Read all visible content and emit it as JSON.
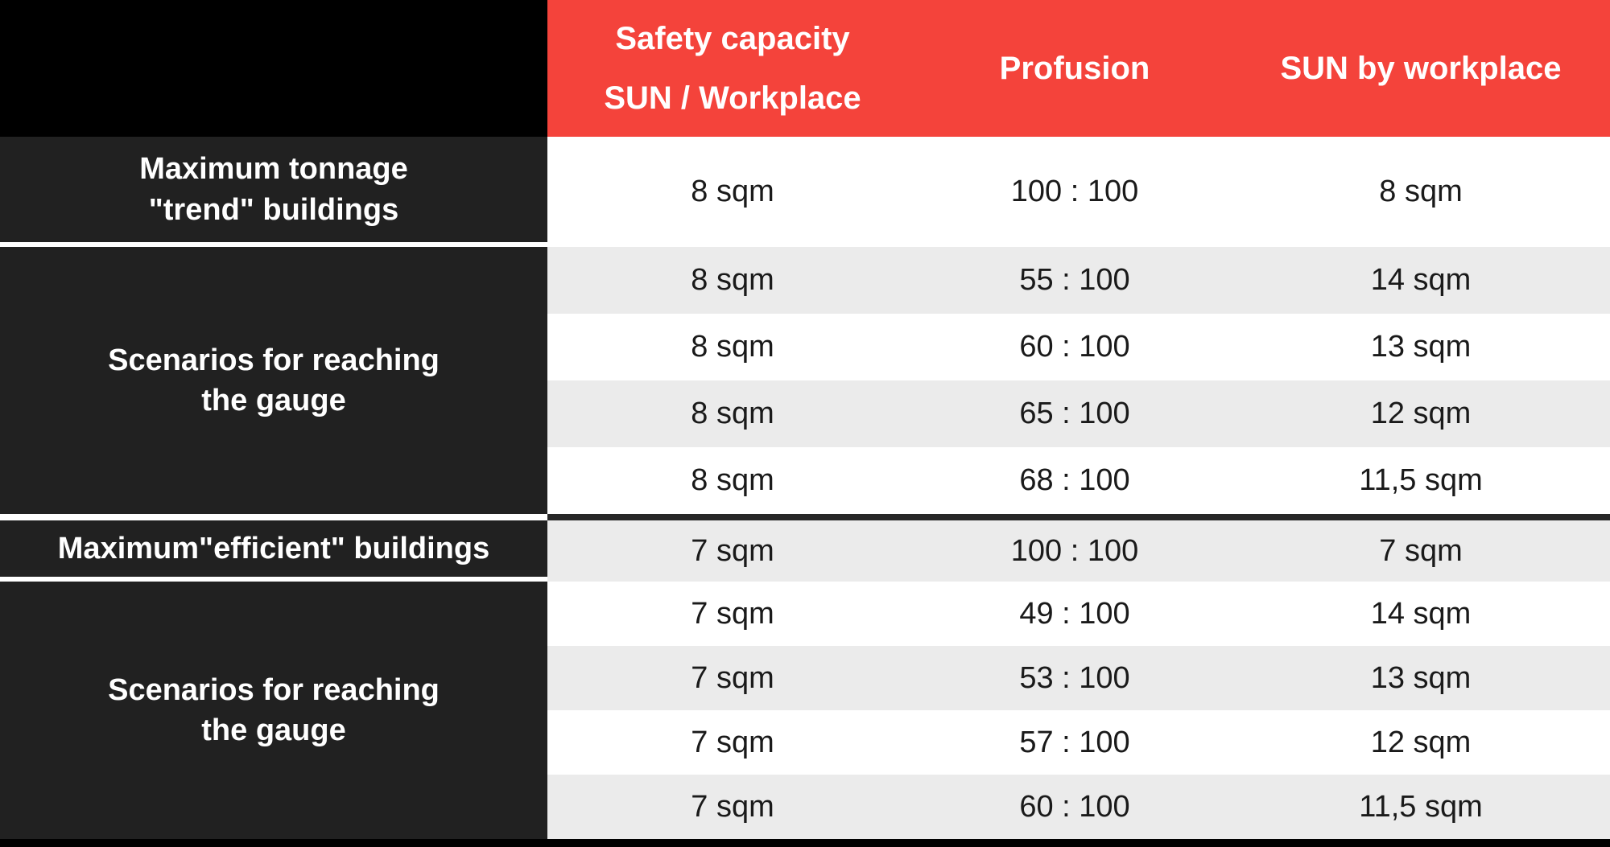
{
  "chart_data": {
    "type": "table",
    "columns": [
      "",
      "Safety capacity SUN / Workplace",
      "Profusion",
      "SUN by workplace"
    ],
    "rows": [
      [
        "Maximum tonnage \"trend\" buildings",
        "8 sqm",
        "100 : 100",
        "8 sqm"
      ],
      [
        "Scenarios for reaching the gauge",
        "8 sqm",
        "55 : 100",
        "14 sqm"
      ],
      [
        "Scenarios for reaching the gauge",
        "8 sqm",
        "60 : 100",
        "13 sqm"
      ],
      [
        "Scenarios for reaching the gauge",
        "8 sqm",
        "65 : 100",
        "12 sqm"
      ],
      [
        "Scenarios for reaching the gauge",
        "8 sqm",
        "68 : 100",
        "11,5 sqm"
      ],
      [
        "Maximum\"efficient\" buildings",
        "7 sqm",
        "100 : 100",
        "7 sqm"
      ],
      [
        "Scenarios for reaching the gauge",
        "7 sqm",
        "49 : 100",
        "14 sqm"
      ],
      [
        "Scenarios for reaching the gauge",
        "7 sqm",
        "53 : 100",
        "13 sqm"
      ],
      [
        "Scenarios for reaching the gauge",
        "7 sqm",
        "57 : 100",
        "12 sqm"
      ],
      [
        "Scenarios for reaching the gauge",
        "7 sqm",
        "60 : 100",
        "11,5 sqm"
      ]
    ],
    "layout_hints": {
      "striped_rows": true,
      "header_background": "#F4433B",
      "label_column_background": "#212121"
    }
  },
  "header": {
    "col1_line1": "Safety capacity",
    "col1_line2": "SUN / Workplace",
    "col2": "Profusion",
    "col3": "SUN by workplace"
  },
  "row_labels": {
    "trend": {
      "line1": "Maximum tonnage",
      "line2": "\"trend\" buildings"
    },
    "scenarios_a": {
      "line1": "Scenarios for reaching",
      "line2": "the gauge"
    },
    "efficient": {
      "line1": "Maximum\"efficient\" buildings"
    },
    "scenarios_b": {
      "line1": "Scenarios for reaching",
      "line2": "the gauge"
    }
  },
  "table": {
    "rows": [
      {
        "capacity": "8 sqm",
        "profusion": "100 : 100",
        "sun": "8 sqm"
      },
      {
        "capacity": "8 sqm",
        "profusion": "55 : 100",
        "sun": "14 sqm"
      },
      {
        "capacity": "8 sqm",
        "profusion": "60 : 100",
        "sun": "13 sqm"
      },
      {
        "capacity": "8 sqm",
        "profusion": "65 : 100",
        "sun": "12 sqm"
      },
      {
        "capacity": "8 sqm",
        "profusion": "68 : 100",
        "sun": "11,5 sqm"
      },
      {
        "capacity": "7 sqm",
        "profusion": "100 : 100",
        "sun": "7 sqm"
      },
      {
        "capacity": "7 sqm",
        "profusion": "49 : 100",
        "sun": "14 sqm"
      },
      {
        "capacity": "7 sqm",
        "profusion": "53 : 100",
        "sun": "13 sqm"
      },
      {
        "capacity": "7 sqm",
        "profusion": "57 : 100",
        "sun": "12 sqm"
      },
      {
        "capacity": "7 sqm",
        "profusion": "60 : 100",
        "sun": "11,5 sqm"
      }
    ]
  },
  "colors": {
    "accent_red": "#F4433B",
    "corner_black": "#000000",
    "label_bg": "#212121",
    "stripe_gray": "#EBEBEB",
    "row_white": "#FFFFFF",
    "separator_dark": "#272727",
    "data_text": "#1A1A1A",
    "header_text": "#FFFFFF"
  }
}
